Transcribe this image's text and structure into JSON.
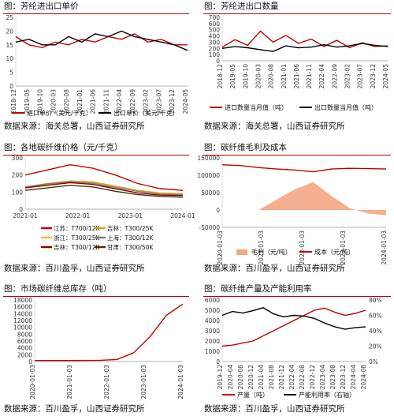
{
  "chart_data": [
    {
      "type": "line",
      "title": "图：芳纶进出口单价",
      "source": "数据来源：海关总署，山西证券研究所",
      "x": [
        "2018-12",
        "2019-05",
        "2019-10",
        "2020-03",
        "2020-08",
        "2021-01",
        "2021-06",
        "2021-11",
        "2022-04",
        "2022-09",
        "2023-02",
        "2023-07",
        "2023-12",
        "2024-05"
      ],
      "x_ticks": [
        "2018-12",
        "2019-05",
        "2019-10",
        "2020-03",
        "2020-08",
        "2021-01",
        "2021-06",
        "2021-11",
        "2022-04",
        "2022-09",
        "2023-02",
        "2023-07",
        "2023-12",
        "2024-05"
      ],
      "ylim": [
        0,
        25
      ],
      "yticks": [
        0,
        5,
        10,
        15,
        20,
        25
      ],
      "series": [
        {
          "name": "进口单价（美元/千克）",
          "color": "#c00000",
          "values": [
            18,
            15,
            14,
            16,
            15,
            17,
            16,
            18,
            17,
            19,
            16,
            17,
            15,
            15
          ]
        },
        {
          "name": "出口单价（美元/千克）",
          "color": "#000000",
          "values": [
            16,
            17,
            15,
            15,
            18,
            16,
            19,
            18,
            20,
            18,
            17,
            16,
            15,
            13
          ]
        }
      ],
      "legend": "bottom"
    },
    {
      "type": "line",
      "title": "图：芳纶进出口数量",
      "source": "数据来源：海关总署，山西证券研究所",
      "x": [
        "2018-12",
        "2019-05",
        "2019-10",
        "2020-03",
        "2020-08",
        "2021-01",
        "2021-06",
        "2021-11",
        "2022-04",
        "2022-09",
        "2023-02",
        "2023-07",
        "2023-12",
        "2024-05"
      ],
      "x_ticks": [
        "2018-12",
        "2019-05",
        "2019-10",
        "2020-03",
        "2020-08",
        "2021-01",
        "2021-06",
        "2021-11",
        "2022-04",
        "2022-09",
        "2023-02",
        "2023-07",
        "2023-12",
        "2024-05"
      ],
      "ylim": [
        0,
        700
      ],
      "yticks": [
        0,
        100,
        200,
        300,
        400,
        500,
        600,
        700
      ],
      "series": [
        {
          "name": "进口数量当月值（吨）",
          "color": "#c00000",
          "values": [
            220,
            340,
            250,
            480,
            300,
            410,
            280,
            350,
            230,
            330,
            210,
            290,
            230,
            240
          ]
        },
        {
          "name": "出口数量当月值（吨）",
          "color": "#000000",
          "values": [
            200,
            230,
            210,
            180,
            150,
            240,
            210,
            220,
            260,
            220,
            240,
            280,
            250,
            230
          ]
        }
      ],
      "legend": "bottom"
    },
    {
      "type": "line",
      "title": "图：各地碳纤维价格（元/千克）",
      "source": "数据来源：百川盈孚，山西证券研究所",
      "x": [
        "2021-01",
        "2021-07",
        "2022-01",
        "2022-07",
        "2023-01",
        "2023-07",
        "2024-01",
        "2024-07"
      ],
      "x_ticks": [
        "2021-01",
        "2022-01",
        "2023-01",
        "2024-01"
      ],
      "ylim": [
        0,
        300
      ],
      "yticks": [
        0,
        100,
        200,
        300
      ],
      "series": [
        {
          "name": "江苏：T700/12K",
          "color": "#c00000",
          "values": [
            200,
            230,
            260,
            240,
            200,
            150,
            120,
            110
          ]
        },
        {
          "name": "吉林：T300/25K",
          "color": "#d4a017",
          "values": [
            130,
            150,
            165,
            160,
            135,
            110,
            95,
            90
          ]
        },
        {
          "name": "浙江：T300/25K",
          "color": "#f0c040",
          "values": [
            125,
            145,
            160,
            155,
            130,
            105,
            90,
            85
          ]
        },
        {
          "name": "上海：T300/12K",
          "color": "#808080",
          "values": [
            130,
            148,
            160,
            152,
            128,
            105,
            88,
            85
          ]
        },
        {
          "name": "吉林：T300/12K",
          "color": "#8b0000",
          "values": [
            125,
            140,
            155,
            145,
            120,
            95,
            82,
            80
          ]
        },
        {
          "name": "甘肃：T300/50K",
          "color": "#4a3000",
          "values": [
            110,
            125,
            140,
            130,
            105,
            85,
            75,
            70
          ]
        }
      ],
      "legend": "bottom"
    },
    {
      "type": "area",
      "title": "图：碳纤维毛利及成本",
      "source": "数据来源：百川盈孚，山西证券研究所",
      "x": [
        "2020-01",
        "2020-07",
        "2021-01",
        "2021-07",
        "2022-01",
        "2022-07",
        "2023-01",
        "2023-07",
        "2024-01",
        "2024-07"
      ],
      "x_ticks": [
        "2020-01-03",
        "2021-01-03",
        "2022-01-03",
        "2023-01-03",
        "2024-01-03"
      ],
      "ylim": [
        -50000,
        150000
      ],
      "yticks": [
        -50000,
        0,
        50000,
        100000,
        150000
      ],
      "series": [
        {
          "name": "毛利（元/吨）",
          "color": "#f4a582",
          "kind": "area",
          "values": [
            0,
            0,
            0,
            30000,
            60000,
            80000,
            40000,
            5000,
            -10000,
            -15000
          ]
        },
        {
          "name": "成本（元/吨）",
          "color": "#c00000",
          "kind": "line",
          "values": [
            130000,
            128000,
            122000,
            118000,
            115000,
            110000,
            118000,
            120000,
            119000,
            118000
          ]
        }
      ],
      "legend": "bottom"
    },
    {
      "type": "line",
      "title": "图：市场碳纤维总库存（吨）",
      "source": "数据来源：百川盈孚，山西证券研究所",
      "x": [
        "2020-01",
        "2020-07",
        "2021-01",
        "2021-07",
        "2022-01",
        "2022-07",
        "2023-01",
        "2023-07",
        "2024-01",
        "2024-07"
      ],
      "x_ticks": [
        "2020-01-03",
        "2021-01-03",
        "2022-01-03",
        "2023-01-03",
        "2024-01-03"
      ],
      "ylim": [
        0,
        18000
      ],
      "yticks": [
        0,
        2000,
        4000,
        6000,
        8000,
        10000,
        12000,
        14000,
        16000,
        18000
      ],
      "series": [
        {
          "name": "",
          "color": "#c00000",
          "values": [
            300,
            300,
            300,
            320,
            380,
            600,
            2500,
            7200,
            13500,
            16800
          ]
        }
      ]
    },
    {
      "type": "line",
      "title": "图：碳纤维产量及产能利用率",
      "source": "数据来源：百川盈孚，山西证券研究所",
      "x": [
        "2019-12",
        "2020-04",
        "2020-08",
        "2020-12",
        "2021-04",
        "2021-08",
        "2021-12",
        "2022-04",
        "2022-08",
        "2022-12",
        "2023-04",
        "2023-08",
        "2023-12",
        "2024-04",
        "2024-08"
      ],
      "x_ticks": [
        "2019-12",
        "2020-04",
        "2020-08",
        "2020-12",
        "2021-04",
        "2021-08",
        "2021-12",
        "2022-04",
        "2022-08",
        "2022-12",
        "2023-04",
        "2023-08",
        "2023-12",
        "2024-04",
        "2024-08"
      ],
      "ylim": [
        0,
        6000
      ],
      "yticks": [
        0,
        1000,
        2000,
        3000,
        4000,
        5000,
        6000
      ],
      "y2lim": [
        0,
        80
      ],
      "y2ticks": [
        "0%",
        "20%",
        "40%",
        "60%",
        "80%"
      ],
      "series": [
        {
          "name": "产量（吨）",
          "color": "#c00000",
          "axis": "left",
          "values": [
            1500,
            1600,
            1800,
            2000,
            2500,
            3000,
            3500,
            4000,
            4500,
            5000,
            5200,
            4800,
            4500,
            4700,
            5000
          ]
        },
        {
          "name": "产能利用率（右轴）",
          "color": "#000000",
          "axis": "right",
          "values": [
            60,
            65,
            63,
            66,
            70,
            62,
            58,
            60,
            59,
            56,
            50,
            45,
            42,
            44,
            45
          ]
        }
      ],
      "legend": "bottom"
    }
  ]
}
